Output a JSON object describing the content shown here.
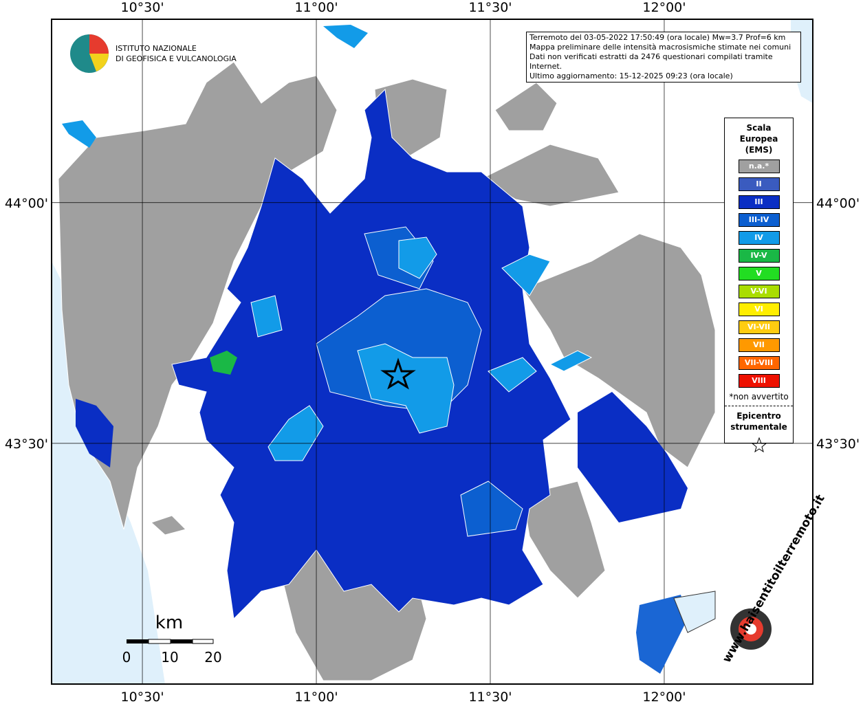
{
  "map": {
    "lon_ticks": [
      {
        "value": 10.5,
        "label": "10°30'"
      },
      {
        "value": 11.0,
        "label": "11°00'"
      },
      {
        "value": 11.5,
        "label": "11°30'"
      },
      {
        "value": 12.0,
        "label": "12°00'"
      }
    ],
    "lat_ticks": [
      {
        "value": 44.0,
        "label": "44°00'"
      },
      {
        "value": 43.5,
        "label": "43°30'"
      }
    ],
    "xlim": [
      10.239,
      12.427
    ],
    "ylim": [
      43.0,
      44.381
    ]
  },
  "institute": {
    "line1": "ISTITUTO NAZIONALE",
    "line2": "DI GEOFISICA E VULCANOLOGIA"
  },
  "info": [
    "Terremoto del 03-05-2022 17:50:49 (ora locale) Mw=3.7 Prof=6 km",
    "Mappa preliminare delle intensità macrosismiche stimate nei comuni",
    "Dati non verificati estratti da 2476 questionari compilati tramite Internet.",
    "Ultimo aggiornamento: 15-12-2025 09:23 (ora locale)"
  ],
  "legend": {
    "title": "Scala Europea (EMS)",
    "items": [
      {
        "label": "n.a.*",
        "color": "#a0a0a0"
      },
      {
        "label": "II",
        "color": "#3a5bbf"
      },
      {
        "label": "III",
        "color": "#0a2ec4"
      },
      {
        "label": "III-IV",
        "color": "#0c5fd0"
      },
      {
        "label": "IV",
        "color": "#129be8"
      },
      {
        "label": "IV-V",
        "color": "#1ab846"
      },
      {
        "label": "V",
        "color": "#22dd22"
      },
      {
        "label": "V-VI",
        "color": "#aadd00"
      },
      {
        "label": "VI",
        "color": "#ffee00"
      },
      {
        "label": "VI-VII",
        "color": "#ffcc11"
      },
      {
        "label": "VII",
        "color": "#ff9900"
      },
      {
        "label": "VII-VIII",
        "color": "#ff6600"
      },
      {
        "label": "VIII",
        "color": "#ee1100"
      }
    ],
    "note": "*non avvertito",
    "epicentre": "Epicentro strumentale"
  },
  "scale": {
    "unit": "km",
    "ticks": [
      0,
      10,
      20
    ]
  },
  "site": "www.haisentitoilterremoto.it"
}
